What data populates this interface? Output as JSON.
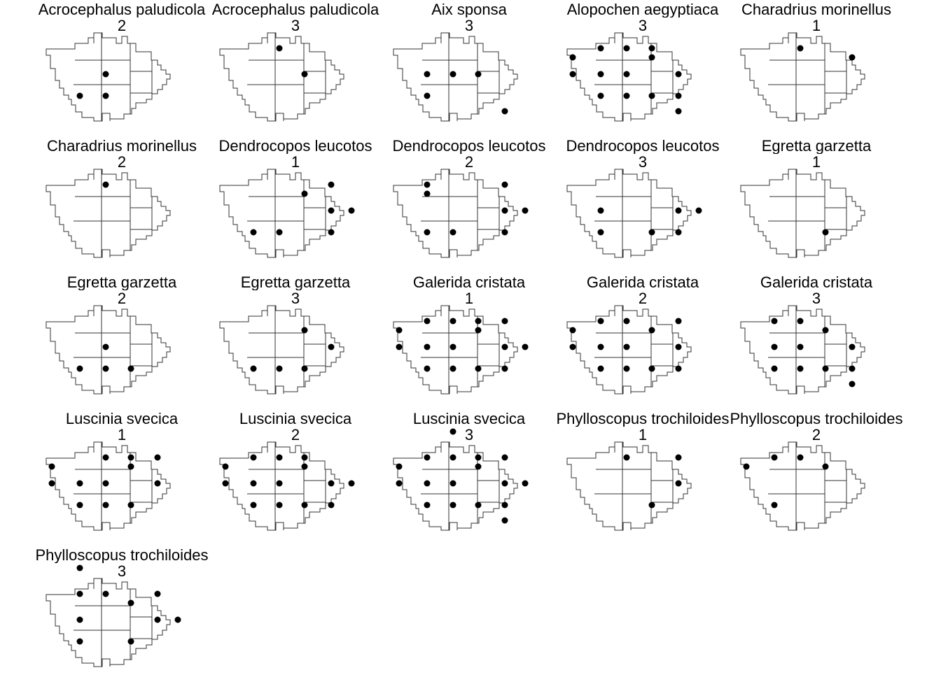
{
  "panels": [
    {
      "species": "Acrocephalus paludicola",
      "period": "2",
      "dots": [
        [
          2,
          3
        ],
        [
          1,
          4
        ],
        [
          2,
          4
        ]
      ]
    },
    {
      "species": "Acrocephalus paludicola",
      "period": "3",
      "dots": [
        [
          2,
          1
        ],
        [
          3,
          3
        ]
      ]
    },
    {
      "species": "Aix sponsa",
      "period": "3",
      "dots": [
        [
          1,
          3
        ],
        [
          2,
          3
        ],
        [
          3,
          3
        ],
        [
          1,
          4
        ],
        [
          4,
          5
        ]
      ]
    },
    {
      "species": "Alopochen aegyptiaca",
      "period": "3",
      "dots": [
        [
          0,
          2
        ],
        [
          1,
          1
        ],
        [
          2,
          1
        ],
        [
          3,
          1
        ],
        [
          0,
          3
        ],
        [
          1,
          3
        ],
        [
          2,
          3
        ],
        [
          3,
          2
        ],
        [
          4,
          3
        ],
        [
          4,
          4
        ],
        [
          1,
          4
        ],
        [
          2,
          4
        ],
        [
          3,
          4
        ],
        [
          4,
          5
        ]
      ]
    },
    {
      "species": "Charadrius morinellus",
      "period": "1",
      "dots": [
        [
          2,
          1
        ],
        [
          4,
          2
        ]
      ]
    },
    {
      "species": "Charadrius morinellus",
      "period": "2",
      "dots": [
        [
          2,
          1
        ]
      ]
    },
    {
      "species": "Dendrocopos leucotos",
      "period": "1",
      "dots": [
        [
          3,
          2
        ],
        [
          4,
          1
        ],
        [
          4,
          3
        ],
        [
          5,
          3
        ],
        [
          1,
          4
        ],
        [
          2,
          4
        ],
        [
          4,
          4
        ]
      ]
    },
    {
      "species": "Dendrocopos leucotos",
      "period": "2",
      "dots": [
        [
          1,
          1
        ],
        [
          1,
          2
        ],
        [
          1,
          4
        ],
        [
          2,
          4
        ],
        [
          4,
          1
        ],
        [
          4,
          3
        ],
        [
          5,
          3
        ],
        [
          4,
          4
        ]
      ]
    },
    {
      "species": "Dendrocopos leucotos",
      "period": "3",
      "dots": [
        [
          1,
          3
        ],
        [
          1,
          4
        ],
        [
          3,
          4
        ],
        [
          4,
          3
        ],
        [
          4,
          4
        ],
        [
          5,
          3
        ]
      ]
    },
    {
      "species": "Egretta garzetta",
      "period": "1",
      "dots": [
        [
          3,
          4
        ]
      ]
    },
    {
      "species": "Egretta garzetta",
      "period": "2",
      "dots": [
        [
          2,
          3
        ],
        [
          1,
          4
        ],
        [
          2,
          4
        ],
        [
          3,
          4
        ]
      ]
    },
    {
      "species": "Egretta garzetta",
      "period": "3",
      "dots": [
        [
          3,
          2
        ],
        [
          4,
          3
        ],
        [
          1,
          4
        ],
        [
          2,
          4
        ],
        [
          3,
          4
        ]
      ]
    },
    {
      "species": "Galerida cristata",
      "period": "1",
      "dots": [
        [
          0,
          2
        ],
        [
          1,
          1
        ],
        [
          2,
          1
        ],
        [
          0,
          3
        ],
        [
          1,
          3
        ],
        [
          2,
          3
        ],
        [
          3,
          1
        ],
        [
          4,
          1
        ],
        [
          3,
          2
        ],
        [
          4,
          3
        ],
        [
          5,
          3
        ],
        [
          1,
          4
        ],
        [
          2,
          4
        ],
        [
          3,
          4
        ],
        [
          4,
          4
        ]
      ]
    },
    {
      "species": "Galerida cristata",
      "period": "2",
      "dots": [
        [
          0,
          2
        ],
        [
          1,
          1
        ],
        [
          2,
          1
        ],
        [
          0,
          3
        ],
        [
          1,
          3
        ],
        [
          2,
          3
        ],
        [
          3,
          2
        ],
        [
          4,
          1
        ],
        [
          4,
          3
        ],
        [
          1,
          4
        ],
        [
          2,
          4
        ],
        [
          3,
          4
        ],
        [
          4,
          4
        ]
      ]
    },
    {
      "species": "Galerida cristata",
      "period": "3",
      "dots": [
        [
          1,
          1
        ],
        [
          2,
          1
        ],
        [
          1,
          3
        ],
        [
          2,
          3
        ],
        [
          3,
          2
        ],
        [
          4,
          3
        ],
        [
          1,
          4
        ],
        [
          2,
          4
        ],
        [
          3,
          4
        ],
        [
          4,
          4
        ],
        [
          4,
          5
        ]
      ]
    },
    {
      "species": "Luscinia svecica",
      "period": "1",
      "dots": [
        [
          0,
          2
        ],
        [
          2,
          1
        ],
        [
          3,
          1
        ],
        [
          4,
          1
        ],
        [
          0,
          3
        ],
        [
          1,
          3
        ],
        [
          2,
          3
        ],
        [
          3,
          2
        ],
        [
          4,
          3
        ],
        [
          1,
          4
        ],
        [
          2,
          4
        ],
        [
          3,
          4
        ]
      ]
    },
    {
      "species": "Luscinia svecica",
      "period": "2",
      "dots": [
        [
          0,
          2
        ],
        [
          1,
          1
        ],
        [
          2,
          1
        ],
        [
          3,
          1
        ],
        [
          0,
          3
        ],
        [
          1,
          3
        ],
        [
          2,
          3
        ],
        [
          3,
          2
        ],
        [
          4,
          3
        ],
        [
          5,
          3
        ],
        [
          1,
          4
        ],
        [
          2,
          4
        ],
        [
          3,
          4
        ],
        [
          4,
          4
        ]
      ]
    },
    {
      "species": "Luscinia svecica",
      "period": "3",
      "dots": [
        [
          2,
          0
        ],
        [
          0,
          2
        ],
        [
          1,
          1
        ],
        [
          2,
          1
        ],
        [
          3,
          1
        ],
        [
          0,
          3
        ],
        [
          1,
          3
        ],
        [
          2,
          3
        ],
        [
          3,
          2
        ],
        [
          4,
          1
        ],
        [
          4,
          3
        ],
        [
          5,
          3
        ],
        [
          1,
          4
        ],
        [
          2,
          4
        ],
        [
          3,
          4
        ],
        [
          4,
          4
        ],
        [
          4,
          5
        ]
      ]
    },
    {
      "species": "Phylloscopus trochiloides",
      "period": "1",
      "dots": [
        [
          2,
          1
        ],
        [
          4,
          1
        ],
        [
          4,
          3
        ],
        [
          3,
          4
        ]
      ]
    },
    {
      "species": "Phylloscopus trochiloides",
      "period": "2",
      "dots": [
        [
          1,
          1
        ],
        [
          2,
          1
        ],
        [
          0,
          2
        ],
        [
          3,
          2
        ],
        [
          1,
          4
        ]
      ]
    },
    {
      "species": "Phylloscopus trochiloides",
      "period": "3",
      "dots": [
        [
          1,
          0
        ],
        [
          1,
          1
        ],
        [
          2,
          1
        ],
        [
          4,
          1
        ],
        [
          1,
          3
        ],
        [
          3,
          2
        ],
        [
          4,
          3
        ],
        [
          5,
          3
        ],
        [
          1,
          4
        ],
        [
          3,
          4
        ]
      ]
    }
  ]
}
